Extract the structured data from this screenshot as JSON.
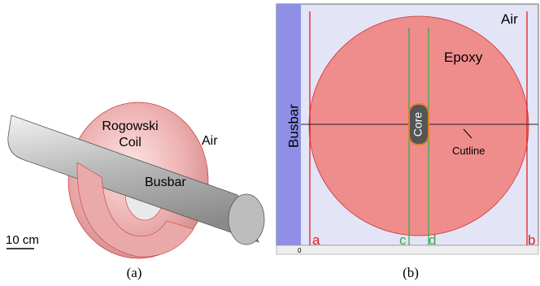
{
  "panel_a": {
    "coil_label": [
      "Rogowski",
      "Coil"
    ],
    "air_label": "Air",
    "busbar_label": "Busbar",
    "scale_label": "10 cm",
    "caption": "(a)"
  },
  "panel_b": {
    "air_label": "Air",
    "epoxy_label": "Epoxy",
    "busbar_label": "Busbar",
    "core_label": "Core",
    "cutline_label": "Cutline",
    "line_labels": [
      "a",
      "b",
      "c",
      "d"
    ],
    "ruler_label": "0",
    "caption": "(b)"
  }
}
